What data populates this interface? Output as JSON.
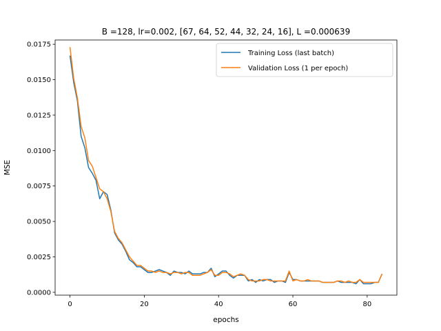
{
  "chart_data": {
    "type": "line",
    "title": "B =128, lr=0.002, [67, 64, 52, 44, 32, 24, 16], L =0.000639",
    "xlabel": "epochs",
    "ylabel": "MSE",
    "xlim": [
      -4,
      88
    ],
    "ylim": [
      -0.0002,
      0.0178
    ],
    "x_ticks": [
      0,
      20,
      40,
      60,
      80
    ],
    "x_tick_labels": [
      "0",
      "20",
      "40",
      "60",
      "80"
    ],
    "y_ticks": [
      0.0,
      0.0025,
      0.005,
      0.0075,
      0.01,
      0.0125,
      0.015,
      0.0175
    ],
    "y_tick_labels": [
      "0.0000",
      "0.0025",
      "0.0050",
      "0.0075",
      "0.0100",
      "0.0125",
      "0.0150",
      "0.0175"
    ],
    "grid": false,
    "legend_position": "top-right",
    "x": [
      0,
      1,
      2,
      3,
      4,
      5,
      6,
      7,
      8,
      9,
      10,
      11,
      12,
      13,
      14,
      15,
      16,
      17,
      18,
      19,
      20,
      21,
      22,
      23,
      24,
      25,
      26,
      27,
      28,
      29,
      30,
      31,
      32,
      33,
      34,
      35,
      36,
      37,
      38,
      39,
      40,
      41,
      42,
      43,
      44,
      45,
      46,
      47,
      48,
      49,
      50,
      51,
      52,
      53,
      54,
      55,
      56,
      57,
      58,
      59,
      60,
      61,
      62,
      63,
      64,
      65,
      66,
      67,
      68,
      69,
      70,
      71,
      72,
      73,
      74,
      75,
      76,
      77,
      78,
      79,
      80,
      81,
      82,
      83,
      84
    ],
    "series": [
      {
        "name": "Training Loss (last batch)",
        "color": "#1f77b4",
        "values": [
          0.0167,
          0.0148,
          0.0135,
          0.011,
          0.0102,
          0.0088,
          0.0084,
          0.0079,
          0.0066,
          0.0071,
          0.0069,
          0.0058,
          0.0042,
          0.0037,
          0.0034,
          0.0029,
          0.0023,
          0.0021,
          0.0018,
          0.0018,
          0.0016,
          0.0014,
          0.0014,
          0.0015,
          0.0016,
          0.0015,
          0.0014,
          0.0012,
          0.0015,
          0.0014,
          0.0014,
          0.0013,
          0.0015,
          0.0013,
          0.0013,
          0.0013,
          0.0014,
          0.0014,
          0.0017,
          0.0011,
          0.0013,
          0.0015,
          0.0015,
          0.0012,
          0.001,
          0.0012,
          0.0012,
          0.0012,
          0.0008,
          0.0009,
          0.0007,
          0.0009,
          0.0008,
          0.0009,
          0.0009,
          0.0007,
          0.0008,
          0.0008,
          0.0007,
          0.0014,
          0.0009,
          0.0009,
          0.0008,
          0.0008,
          0.0008,
          0.0008,
          0.0008,
          0.0008,
          0.0007,
          0.0007,
          0.0007,
          0.0007,
          0.0008,
          0.0007,
          0.0007,
          0.0007,
          0.0007,
          0.0006,
          0.0009,
          0.0006,
          0.0006,
          0.0006,
          0.0007,
          0.0007,
          0.0013
        ]
      },
      {
        "name": "Validation Loss (1 per epoch)",
        "color": "#ff7f0e",
        "values": [
          0.0173,
          0.0151,
          0.0137,
          0.0117,
          0.0109,
          0.0093,
          0.0089,
          0.0081,
          0.0073,
          0.0071,
          0.0066,
          0.0057,
          0.0043,
          0.0038,
          0.0035,
          0.003,
          0.0025,
          0.0022,
          0.0019,
          0.0019,
          0.0017,
          0.0015,
          0.0015,
          0.0014,
          0.0015,
          0.0014,
          0.0014,
          0.0013,
          0.0014,
          0.0014,
          0.0013,
          0.0014,
          0.0014,
          0.0012,
          0.0012,
          0.0012,
          0.0013,
          0.0014,
          0.0016,
          0.0012,
          0.0012,
          0.0014,
          0.0014,
          0.0013,
          0.0011,
          0.0012,
          0.0013,
          0.0012,
          0.0009,
          0.0008,
          0.0008,
          0.0008,
          0.0009,
          0.0009,
          0.0008,
          0.0008,
          0.0008,
          0.0008,
          0.0008,
          0.0015,
          0.0008,
          0.0009,
          0.0008,
          0.0008,
          0.0009,
          0.0008,
          0.0008,
          0.0008,
          0.0007,
          0.0007,
          0.0007,
          0.0007,
          0.0008,
          0.0008,
          0.0007,
          0.0008,
          0.0007,
          0.0007,
          0.0009,
          0.0007,
          0.0007,
          0.0007,
          0.0007,
          0.0007,
          0.0013
        ]
      }
    ]
  }
}
